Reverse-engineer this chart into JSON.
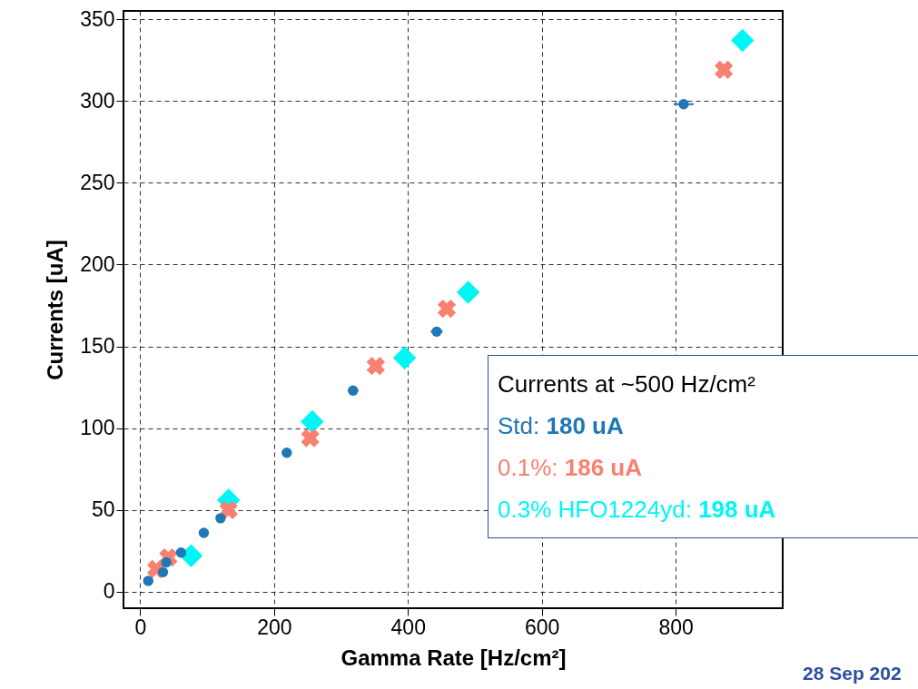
{
  "chart_data": {
    "type": "scatter",
    "xlabel": "Gamma Rate [Hz/cm²]",
    "ylabel": "Currents [uA]",
    "xlim": [
      -25,
      960
    ],
    "ylim": [
      -10,
      355
    ],
    "xticks": [
      0,
      200,
      400,
      600,
      800
    ],
    "yticks": [
      0,
      50,
      100,
      150,
      200,
      250,
      300,
      350
    ],
    "grid": true,
    "series": [
      {
        "color": "#1f77b4",
        "marker": "circle",
        "x": [
          12,
          34,
          39,
          61,
          95,
          120,
          219,
          318,
          443,
          812
        ],
        "values": [
          6.7,
          12,
          18,
          24,
          36,
          45,
          85,
          123,
          159,
          298
        ],
        "xerrors": [
          null,
          null,
          null,
          null,
          null,
          null,
          6,
          8,
          9,
          15
        ]
      },
      {
        "color": "#f88070",
        "marker": "cross",
        "x": [
          24,
          42,
          132,
          254,
          352,
          458,
          872
        ],
        "values": [
          14,
          21,
          50,
          94,
          138,
          173,
          319
        ]
      },
      {
        "color": "#00f5f5",
        "marker": "diamond",
        "x": [
          76,
          132,
          257,
          395,
          490,
          900
        ],
        "values": [
          22,
          56,
          104,
          143,
          183,
          337
        ]
      }
    ],
    "annotations": [
      "Currents at ~500 Hz/cm²",
      "Std: 180 uA",
      "0.1%: 186 uA",
      "0.3% HFO1224yd: 198 uA",
      "28 Sep 202"
    ]
  }
}
